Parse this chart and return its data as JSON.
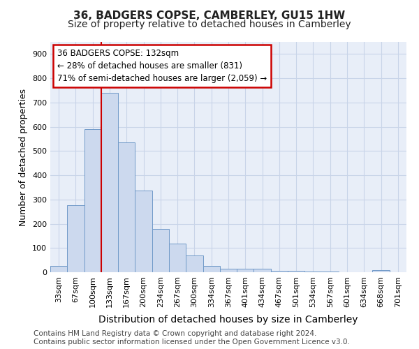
{
  "title": "36, BADGERS COPSE, CAMBERLEY, GU15 1HW",
  "subtitle": "Size of property relative to detached houses in Camberley",
  "xlabel": "Distribution of detached houses by size in Camberley",
  "ylabel": "Number of detached properties",
  "bar_labels": [
    "33sqm",
    "67sqm",
    "100sqm",
    "133sqm",
    "167sqm",
    "200sqm",
    "234sqm",
    "267sqm",
    "300sqm",
    "334sqm",
    "367sqm",
    "401sqm",
    "434sqm",
    "467sqm",
    "501sqm",
    "534sqm",
    "567sqm",
    "601sqm",
    "634sqm",
    "668sqm",
    "701sqm"
  ],
  "bar_values": [
    25,
    275,
    590,
    740,
    535,
    338,
    178,
    118,
    68,
    25,
    15,
    15,
    13,
    7,
    5,
    4,
    2,
    0,
    0,
    8,
    0
  ],
  "bar_color": "#ccd9ee",
  "bar_edge_color": "#7099c8",
  "property_bar_index": 3,
  "annotation_text": "36 BADGERS COPSE: 132sqm\n← 28% of detached houses are smaller (831)\n71% of semi-detached houses are larger (2,059) →",
  "annotation_box_color": "#ffffff",
  "annotation_box_edge": "#cc0000",
  "vline_color": "#cc0000",
  "ylim": [
    0,
    950
  ],
  "yticks": [
    0,
    100,
    200,
    300,
    400,
    500,
    600,
    700,
    800,
    900
  ],
  "grid_color": "#c8d4e8",
  "bg_color": "#e8eef8",
  "footer": "Contains HM Land Registry data © Crown copyright and database right 2024.\nContains public sector information licensed under the Open Government Licence v3.0.",
  "title_fontsize": 11,
  "subtitle_fontsize": 10,
  "xlabel_fontsize": 10,
  "ylabel_fontsize": 9,
  "tick_fontsize": 8,
  "annotation_fontsize": 8.5,
  "footer_fontsize": 7.5
}
